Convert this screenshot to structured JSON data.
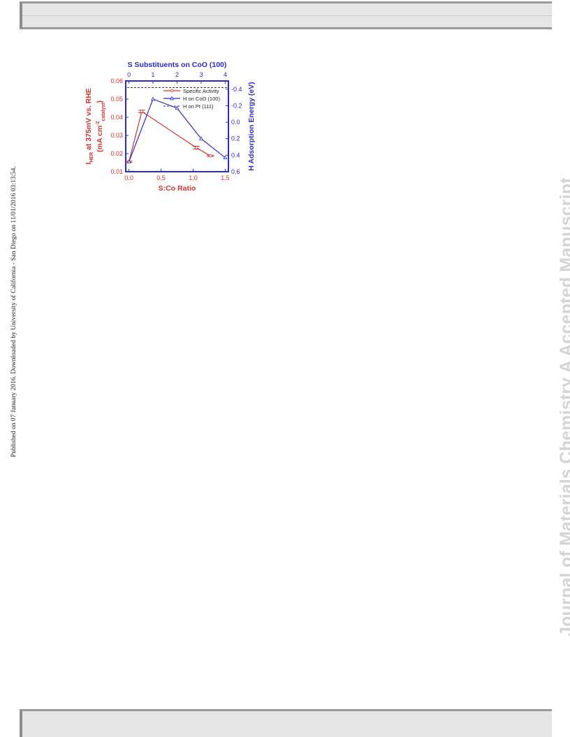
{
  "page": {
    "side_note": "Published on 07 January 2016. Downloaded by University of California - San Diego on 11/01/2016 03:13:54.",
    "watermark": "Journal of Materials Chemistry A Accepted Manuscript"
  },
  "chart_data": {
    "type": "line",
    "title": "S Substituents on CoO (100)",
    "xlabel": "S:Co Ratio",
    "x_ticks": [
      "0.0",
      "0.5",
      "1.0",
      "1.5"
    ],
    "xlim": [
      -0.05,
      1.55
    ],
    "top_axis_ticks": [
      "0",
      "1",
      "2",
      "3",
      "4"
    ],
    "top_axis_values": [
      0,
      0.375,
      0.75,
      1.125,
      1.5
    ],
    "ylabel_left_lines": [
      "I",
      "HER",
      " at 375mV vs. RHE",
      "(mA cm",
      "-2",
      "catalyst",
      ")"
    ],
    "ylim_left": [
      0.01,
      0.06
    ],
    "y_ticks_left": [
      "0.01",
      "0.02",
      "0.03",
      "0.04",
      "0.05",
      "0.06"
    ],
    "ylabel_right": "H Adsorption Energy (eV)",
    "ylim_right": [
      0.6,
      -0.5
    ],
    "y_ticks_right": [
      "-0.4",
      "-0.2",
      "0.0",
      "0.2",
      "0.4",
      "0.6"
    ],
    "colors": {
      "left": "#d9302c",
      "right": "#2a2ad1",
      "frame": "#2a2ad1",
      "pt_line": "#333366"
    },
    "legend_position": "top-right",
    "series": [
      {
        "name": "Specific Activity",
        "axis": "left",
        "x": [
          0.0,
          0.2,
          1.05,
          1.27
        ],
        "y": [
          0.0155,
          0.0432,
          0.0232,
          0.0187
        ],
        "error": [
          0.0003,
          0.0007,
          0.0008,
          0.0003
        ]
      },
      {
        "name": "H on CoO (100)",
        "axis": "right",
        "x": [
          0.0,
          0.375,
          0.75,
          1.125,
          1.5
        ],
        "y": [
          0.48,
          -0.28,
          -0.17,
          0.2,
          0.43
        ]
      },
      {
        "name": "H on Pt (111)",
        "axis": "right",
        "y_const": -0.42
      }
    ]
  }
}
